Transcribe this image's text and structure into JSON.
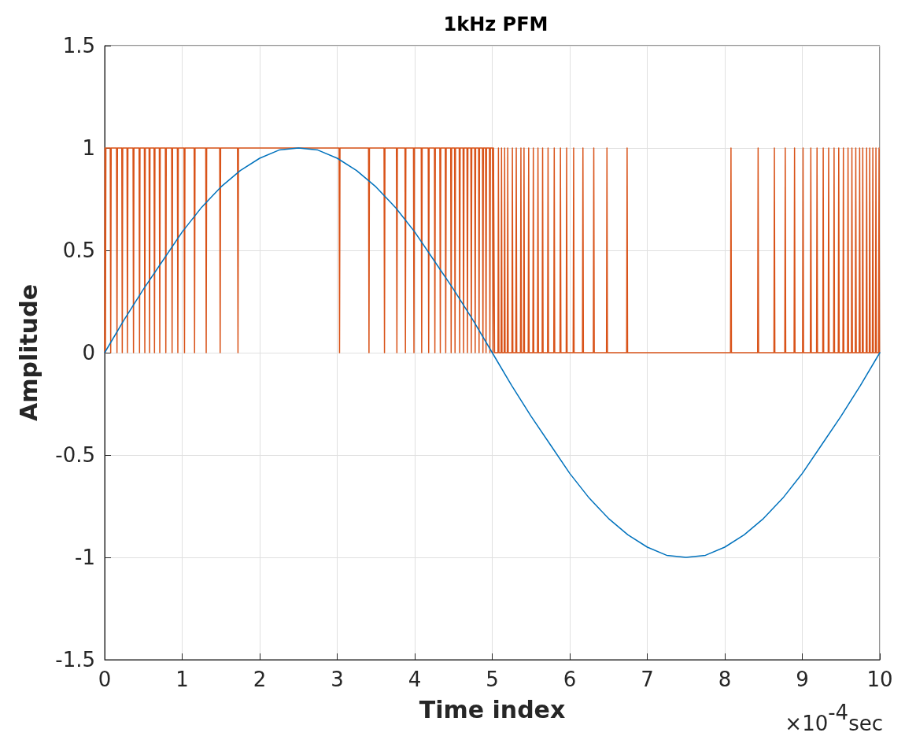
{
  "chart_data": {
    "type": "line",
    "title": "1kHz PFM",
    "xlabel": "Time index",
    "ylabel": "Amplitude",
    "annotations": [
      "×10$^{-4}$sec"
    ],
    "xlim": [
      0,
      10
    ],
    "xticks": [
      0,
      1,
      2,
      3,
      4,
      5,
      6,
      7,
      8,
      9,
      10
    ],
    "ylim": [
      -1.5,
      1.5
    ],
    "yticks": [
      -1.5,
      -1,
      -0.5,
      0,
      0.5,
      1,
      1.5
    ],
    "grid": true,
    "marker": "none",
    "line_style": "solid",
    "series": [
      {
        "color": "#0072bd",
        "x": [
          0,
          0.25,
          0.5,
          0.75,
          1,
          1.25,
          1.5,
          1.75,
          2,
          2.25,
          2.5,
          2.75,
          3,
          3.25,
          3.5,
          3.75,
          4,
          4.25,
          4.5,
          4.75,
          5,
          5.25,
          5.5,
          5.75,
          6,
          6.25,
          6.5,
          6.75,
          7,
          7.25,
          7.5,
          7.75,
          8,
          8.25,
          8.5,
          8.75,
          9,
          9.25,
          9.5,
          9.75,
          10
        ],
        "values": [
          0,
          0.16,
          0.31,
          0.45,
          0.59,
          0.71,
          0.81,
          0.89,
          0.95,
          0.99,
          1,
          0.99,
          0.95,
          0.89,
          0.81,
          0.71,
          0.59,
          0.45,
          0.31,
          0.16,
          0,
          -0.16,
          -0.31,
          -0.45,
          -0.59,
          -0.71,
          -0.81,
          -0.89,
          -0.95,
          -0.99,
          -1,
          -0.99,
          -0.95,
          -0.89,
          -0.81,
          -0.71,
          -0.59,
          -0.45,
          -0.31,
          -0.16,
          0
        ]
      },
      {
        "color": "#d95319",
        "x": [
          0,
          0.004,
          0.01,
          0.016,
          0.072,
          0.078,
          0.084,
          0.153,
          0.159,
          0.165,
          0.221,
          0.227,
          0.233,
          0.288,
          0.294,
          0.3,
          0.366,
          0.372,
          0.378,
          0.444,
          0.45,
          0.456,
          0.512,
          0.518,
          0.524,
          0.573,
          0.579,
          0.585,
          0.637,
          0.643,
          0.649,
          0.705,
          0.711,
          0.717,
          0.783,
          0.789,
          0.795,
          0.864,
          0.87,
          0.876,
          0.938,
          0.944,
          0.95,
          1.024,
          1.03,
          1.036,
          1.154,
          1.16,
          1.166,
          1.304,
          1.31,
          1.316,
          1.484,
          1.49,
          1.496,
          1.714,
          1.72,
          1.726,
          3.024,
          3.03,
          3.036,
          3.404,
          3.41,
          3.416,
          3.604,
          3.61,
          3.616,
          3.764,
          3.77,
          3.776,
          3.874,
          3.88,
          3.886,
          3.984,
          3.99,
          3.996,
          4.084,
          4.09,
          4.096,
          4.174,
          4.18,
          4.186,
          4.254,
          4.26,
          4.266,
          4.324,
          4.33,
          4.336,
          4.394,
          4.4,
          4.406,
          4.464,
          4.47,
          4.476,
          4.514,
          4.52,
          4.526,
          4.574,
          4.58,
          4.586,
          4.624,
          4.63,
          4.636,
          4.674,
          4.68,
          4.686,
          4.724,
          4.73,
          4.736,
          4.774,
          4.78,
          4.786,
          4.824,
          4.83,
          4.836,
          4.874,
          4.88,
          4.886,
          4.914,
          4.92,
          4.926,
          4.964,
          4.97,
          4.976,
          5.004,
          5.01,
          5.016,
          5.03,
          5.074,
          5.08,
          5.086,
          5.114,
          5.12,
          5.126,
          5.154,
          5.16,
          5.166,
          5.194,
          5.2,
          5.206,
          5.254,
          5.26,
          5.266,
          5.304,
          5.31,
          5.316,
          5.364,
          5.37,
          5.376,
          5.404,
          5.41,
          5.416,
          5.464,
          5.47,
          5.476,
          5.524,
          5.53,
          5.536,
          5.584,
          5.59,
          5.596,
          5.644,
          5.65,
          5.656,
          5.714,
          5.72,
          5.726,
          5.794,
          5.8,
          5.806,
          5.874,
          5.88,
          5.886,
          5.954,
          5.96,
          5.966,
          6.044,
          6.05,
          6.056,
          6.164,
          6.17,
          6.176,
          6.304,
          6.31,
          6.316,
          6.474,
          6.48,
          6.486,
          6.734,
          6.74,
          6.746,
          8.074,
          8.08,
          8.086,
          8.424,
          8.43,
          8.436,
          8.634,
          8.64,
          8.646,
          8.774,
          8.78,
          8.786,
          8.894,
          8.9,
          8.906,
          9.004,
          9.01,
          9.016,
          9.104,
          9.11,
          9.116,
          9.184,
          9.19,
          9.196,
          9.264,
          9.27,
          9.276,
          9.334,
          9.34,
          9.346,
          9.404,
          9.41,
          9.416,
          9.464,
          9.47,
          9.476,
          9.524,
          9.53,
          9.536,
          9.584,
          9.59,
          9.596,
          9.634,
          9.64,
          9.646,
          9.684,
          9.69,
          9.696,
          9.734,
          9.74,
          9.746,
          9.774,
          9.78,
          9.786,
          9.824,
          9.83,
          9.836,
          9.864,
          9.87,
          9.876,
          9.904,
          9.91,
          9.916,
          9.944,
          9.95,
          9.956,
          9.984,
          9.99,
          9.996
        ],
        "values": [
          0,
          1,
          0,
          1,
          1,
          0,
          1,
          1,
          0,
          1,
          1,
          0,
          1,
          1,
          0,
          1,
          1,
          0,
          1,
          1,
          0,
          1,
          1,
          0,
          1,
          1,
          0,
          1,
          1,
          0,
          1,
          1,
          0,
          1,
          1,
          0,
          1,
          1,
          0,
          1,
          1,
          0,
          1,
          1,
          0,
          1,
          1,
          0,
          1,
          1,
          0,
          1,
          1,
          0,
          1,
          1,
          0,
          1,
          1,
          0,
          1,
          1,
          0,
          1,
          1,
          0,
          1,
          1,
          0,
          1,
          1,
          0,
          1,
          1,
          0,
          1,
          1,
          0,
          1,
          1,
          0,
          1,
          1,
          0,
          1,
          1,
          0,
          1,
          1,
          0,
          1,
          1,
          0,
          1,
          1,
          0,
          1,
          1,
          0,
          1,
          1,
          0,
          1,
          1,
          0,
          1,
          1,
          0,
          1,
          1,
          0,
          1,
          1,
          0,
          1,
          1,
          0,
          1,
          1,
          0,
          1,
          1,
          0,
          1,
          1,
          0,
          1,
          0,
          0,
          1,
          0,
          0,
          1,
          0,
          0,
          1,
          0,
          0,
          1,
          0,
          0,
          1,
          0,
          0,
          1,
          0,
          0,
          1,
          0,
          0,
          1,
          0,
          0,
          1,
          0,
          0,
          1,
          0,
          0,
          1,
          0,
          0,
          1,
          0,
          0,
          1,
          0,
          0,
          1,
          0,
          0,
          1,
          0,
          0,
          1,
          0,
          0,
          1,
          0,
          0,
          1,
          0,
          0,
          1,
          0,
          0,
          1,
          0,
          0,
          1,
          0,
          0,
          1,
          0,
          0,
          1,
          0,
          0,
          1,
          0,
          0,
          1,
          0,
          0,
          1,
          0,
          0,
          1,
          0,
          0,
          1,
          0,
          0,
          1,
          0,
          0,
          1,
          0,
          0,
          1,
          0,
          0,
          1,
          0,
          0,
          1,
          0,
          0,
          1,
          0,
          0,
          1,
          0,
          0,
          1,
          0,
          0,
          1,
          0,
          0,
          1,
          0,
          0,
          1,
          0,
          0,
          1,
          0,
          0,
          1,
          0,
          0,
          1,
          0,
          0,
          1,
          0,
          0,
          1,
          0
        ]
      }
    ]
  }
}
